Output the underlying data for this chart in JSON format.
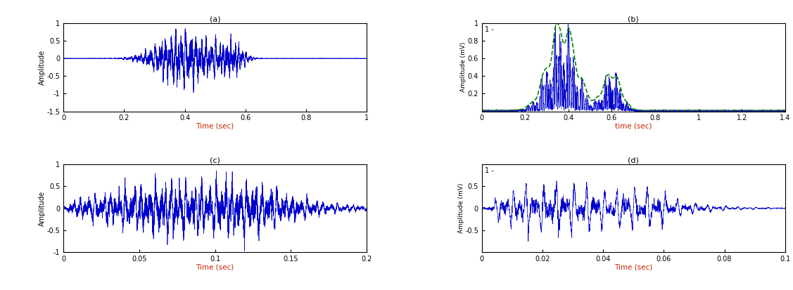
{
  "fig_width": 11.27,
  "fig_height": 4.13,
  "dpi": 100,
  "background_color": "#ffffff",
  "plots": [
    {
      "label": "(a)",
      "xlabel": "Time (sec)",
      "ylabel": "Amplitude",
      "xlim": [
        0,
        1
      ],
      "ylim": [
        -1.5,
        1.0
      ],
      "yticks": [
        1,
        0.5,
        0,
        -0.5,
        -1,
        -1.5
      ],
      "ytick_labels": [
        "1",
        "0.5",
        "0",
        "-0.5",
        "-1",
        "-1.5"
      ],
      "xticks": [
        0,
        0.2,
        0.4,
        0.6,
        0.8,
        1
      ],
      "xtick_labels": [
        "0",
        "0.2",
        "0.4",
        "0.6",
        "0.8",
        "1"
      ],
      "color": "#0000cc"
    },
    {
      "label": "(b)",
      "xlabel": "time (sec)",
      "ylabel": "Amplitude (mV)",
      "xlim": [
        0,
        1.4
      ],
      "ylim": [
        0,
        1.0
      ],
      "yticks": [
        0.2,
        0.4,
        0.6,
        0.8,
        1.0
      ],
      "ytick_labels": [
        "0.2",
        "0.4",
        "0.6",
        "0.8",
        "1"
      ],
      "xticks": [
        0,
        0.2,
        0.4,
        0.6,
        0.8,
        1.0,
        1.2,
        1.4
      ],
      "xtick_labels": [
        "0",
        "0.2",
        "0.4",
        "0.6",
        "0.8",
        "1",
        "1.2",
        "1.4"
      ],
      "color_blue": "#0000cc",
      "color_green": "#008800"
    },
    {
      "label": "(c)",
      "xlabel": "Time (sec)",
      "ylabel": "Amplitude",
      "xlim": [
        0,
        0.2
      ],
      "ylim": [
        -1,
        1
      ],
      "yticks": [
        1,
        0.5,
        0,
        -0.5,
        -1
      ],
      "ytick_labels": [
        "1",
        "0.5",
        "0",
        "-0.5",
        "-1"
      ],
      "xticks": [
        0,
        0.05,
        0.1,
        0.15,
        0.2
      ],
      "xtick_labels": [
        "0",
        "0.05",
        "0.1",
        "0.15",
        "0.2"
      ],
      "color": "#0000cc"
    },
    {
      "label": "(d)",
      "xlabel": "Time (sec)",
      "ylabel": "Amplitude (mV)",
      "xlim": [
        0,
        0.1
      ],
      "ylim": [
        -1,
        1
      ],
      "yticks": [
        0.5,
        0,
        -0.5
      ],
      "ytick_labels": [
        "0.5",
        "0",
        "-0.5"
      ],
      "xticks": [
        0,
        0.02,
        0.04,
        0.06,
        0.08,
        0.1
      ],
      "xtick_labels": [
        "0",
        "0.02",
        "0.04",
        "0.06",
        "0.08",
        "0.1"
      ],
      "color": "#0000cc"
    }
  ]
}
